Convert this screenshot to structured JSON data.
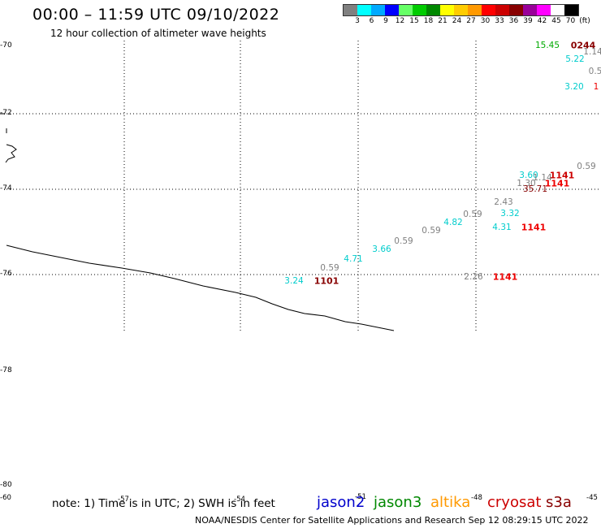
{
  "header": {
    "title": "00:00 – 11:59 UTC 09/10/2022",
    "subtitle": "12 hour collection of altimeter wave heights"
  },
  "legend": {
    "colors": [
      "#808080",
      "#00ffff",
      "#00aaff",
      "#0000ff",
      "#66ff66",
      "#00cc00",
      "#008800",
      "#ffff00",
      "#ffcc00",
      "#ff9900",
      "#ff0000",
      "#cc0000",
      "#880000",
      "#990099",
      "#ff00ff",
      "#ffffff",
      "#000000"
    ],
    "ticks": [
      "3",
      "6",
      "9",
      "12",
      "15",
      "18",
      "21",
      "24",
      "27",
      "30",
      "33",
      "36",
      "39",
      "42",
      "45",
      "70",
      "(ft)"
    ]
  },
  "map": {
    "lat_labels": [
      "-70",
      "-72",
      "-74",
      "-76",
      "-78",
      "-80"
    ],
    "lon_labels": [
      "-60",
      "-57",
      "-54",
      "-51",
      "-48",
      "-45"
    ],
    "observations": [
      {
        "text": "15.45",
        "color": "#00aa00"
      },
      {
        "text": "0244",
        "color": "#880000"
      },
      {
        "text": "1.14",
        "color": "#808080"
      },
      {
        "text": "5.22",
        "color": "#00cccc"
      },
      {
        "text": "0.5",
        "color": "#808080"
      },
      {
        "text": "3.20",
        "color": "#00cccc"
      },
      {
        "text": "1",
        "color": "#ee0000"
      },
      {
        "text": "0.59",
        "color": "#808080"
      },
      {
        "text": "3.60",
        "color": "#00cccc"
      },
      {
        "text": "1141",
        "color": "#cc0000"
      },
      {
        "text": "1.30",
        "color": "#808080"
      },
      {
        "text": "1.14",
        "color": "#808080"
      },
      {
        "text": "1141",
        "color": "#ee0000"
      },
      {
        "text": "35.71",
        "color": "#880000"
      },
      {
        "text": "2.43",
        "color": "#808080"
      },
      {
        "text": "0.59",
        "color": "#808080"
      },
      {
        "text": "3.32",
        "color": "#00cccc"
      },
      {
        "text": "4.82",
        "color": "#00cccc"
      },
      {
        "text": "0.59",
        "color": "#808080"
      },
      {
        "text": "4.31",
        "color": "#00cccc"
      },
      {
        "text": "1141",
        "color": "#ee0000"
      },
      {
        "text": "0.59",
        "color": "#808080"
      },
      {
        "text": "3.66",
        "color": "#00cccc"
      },
      {
        "text": "4.71",
        "color": "#00cccc"
      },
      {
        "text": "0.59",
        "color": "#808080"
      },
      {
        "text": "3.24",
        "color": "#00cccc"
      },
      {
        "text": "1101",
        "color": "#880000"
      },
      {
        "text": "2.26",
        "color": "#808080"
      },
      {
        "text": "1141",
        "color": "#ee0000"
      }
    ]
  },
  "footer": {
    "note": "note: 1) Time is in UTC; 2) SWH is in feet",
    "satellites": [
      {
        "name": "jason2",
        "color": "#0000cc"
      },
      {
        "name": "jason3",
        "color": "#008800"
      },
      {
        "name": "altika",
        "color": "#ff9900"
      },
      {
        "name": "cryosat",
        "color": "#cc0000"
      },
      {
        "name": "s3a",
        "color": "#880000"
      }
    ],
    "credit": "NOAA/NESDIS Center for Satellite Applications and Research    Sep 12 08:29:15 UTC 2022"
  }
}
